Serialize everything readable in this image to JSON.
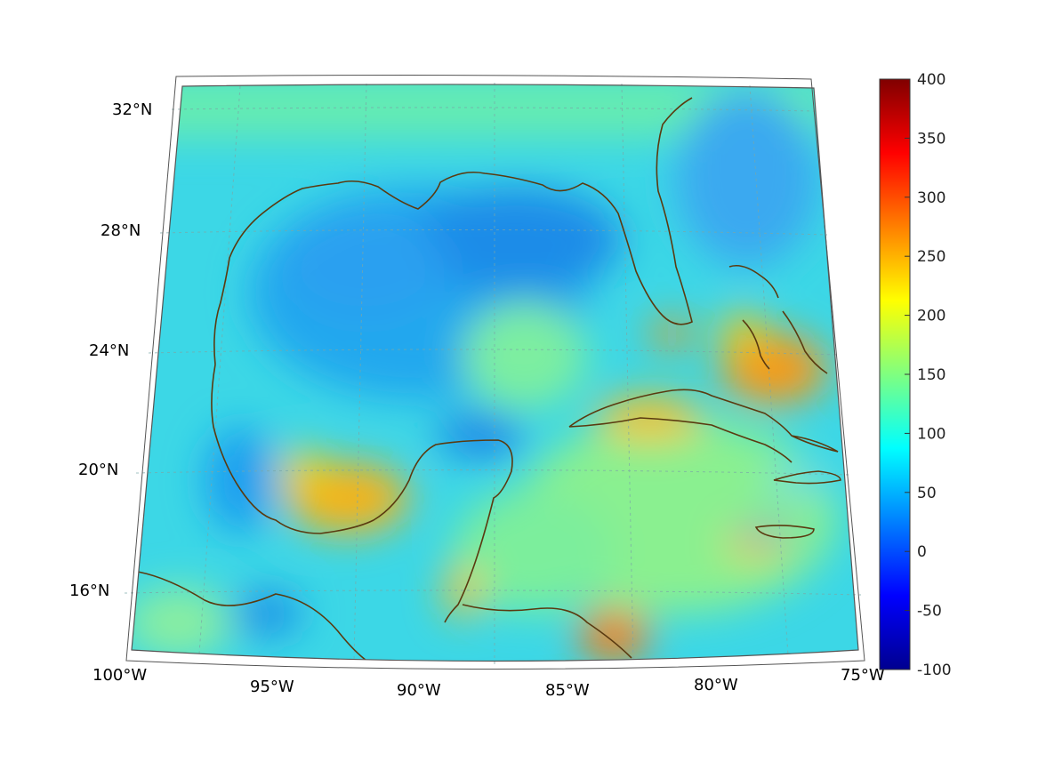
{
  "map": {
    "region": "Gulf of Mexico and Caribbean",
    "lon_range": [
      -100,
      -75
    ],
    "lat_range": [
      14,
      33
    ],
    "lat_labels": [
      "32°N",
      "28°N",
      "24°N",
      "20°N",
      "16°N"
    ],
    "lat_values": [
      32,
      28,
      24,
      20,
      16
    ],
    "lon_labels": [
      "100°W",
      "95°W",
      "90°W",
      "85°W",
      "80°W",
      "75°W"
    ],
    "lon_values": [
      -100,
      -95,
      -90,
      -85,
      -80,
      -75
    ],
    "grid": true,
    "coastline_color": "#5a3a10"
  },
  "colorbar": {
    "min": -100,
    "max": 400,
    "tick_labels": [
      "400",
      "350",
      "300",
      "250",
      "200",
      "150",
      "100",
      "50",
      "0",
      "-50",
      "-100"
    ],
    "tick_values": [
      400,
      350,
      300,
      250,
      200,
      150,
      100,
      50,
      0,
      -50,
      -100
    ],
    "colormap": "jet",
    "placement": "right"
  }
}
